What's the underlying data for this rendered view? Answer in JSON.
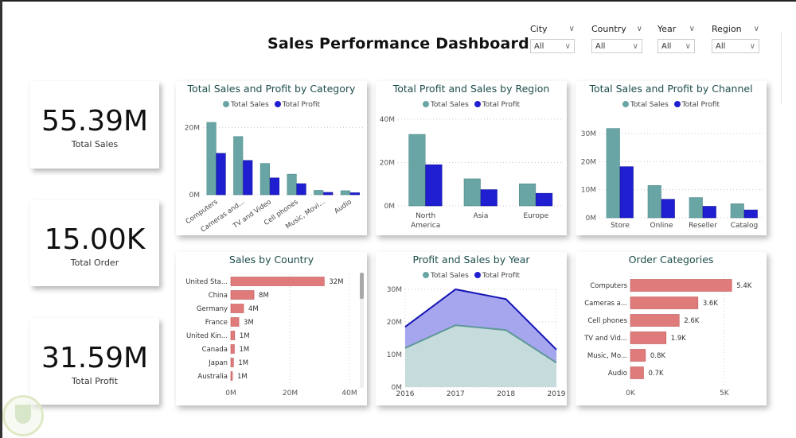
{
  "header": {
    "title": "Sales Performance Dashboard"
  },
  "slicers": [
    {
      "label": "City",
      "value": "All"
    },
    {
      "label": "Country",
      "value": "All"
    },
    {
      "label": "Year",
      "value": "All"
    },
    {
      "label": "Region",
      "value": "All"
    }
  ],
  "kpis": [
    {
      "value": "55.39M",
      "label": "Total Sales"
    },
    {
      "value": "15.00K",
      "label": "Total Order"
    },
    {
      "value": "31.59M",
      "label": "Total Profit"
    }
  ],
  "colors": {
    "sales": "#6aa5a5",
    "profit": "#1f1fd1",
    "bar": "#e07b7b",
    "title": "#1d4e4b"
  },
  "legend": {
    "sales": "Total Sales",
    "profit": "Total Profit"
  },
  "chart_data": [
    {
      "id": "category",
      "type": "bar",
      "title": "Total Sales and Profit by Category",
      "categories": [
        "Computers",
        "Cameras and...",
        "TV and Video",
        "Cell phones",
        "Music, Movi...",
        "Audio"
      ],
      "series": [
        {
          "name": "Total Sales",
          "values": [
            21.5,
            17.3,
            9.3,
            6.1,
            1.3,
            1.2
          ]
        },
        {
          "name": "Total Profit",
          "values": [
            12.3,
            10.2,
            5.0,
            3.3,
            0.7,
            0.6
          ]
        }
      ],
      "yticks": [
        "0M",
        "20M"
      ],
      "ylim": [
        0,
        30
      ],
      "unit": "M",
      "grid": true,
      "legend_position": "top"
    },
    {
      "id": "region",
      "type": "bar",
      "title": "Total Profit and Sales by Region",
      "categories": [
        "North America",
        "Asia",
        "Europe"
      ],
      "series": [
        {
          "name": "Total Sales",
          "values": [
            33,
            12.5,
            10.2
          ]
        },
        {
          "name": "Total Profit",
          "values": [
            19,
            7.5,
            5.8
          ]
        }
      ],
      "yticks": [
        "0M",
        "20M",
        "40M"
      ],
      "ylim": [
        0,
        40
      ],
      "unit": "M",
      "grid": true,
      "legend_position": "top"
    },
    {
      "id": "channel",
      "type": "bar",
      "title": "Total Sales and Profit by Channel",
      "categories": [
        "Store",
        "Online",
        "Reseller",
        "Catalog"
      ],
      "series": [
        {
          "name": "Total Sales",
          "values": [
            31.8,
            11.5,
            7.2,
            5.0
          ]
        },
        {
          "name": "Total Profit",
          "values": [
            18.2,
            6.6,
            4.1,
            2.8
          ]
        }
      ],
      "yticks": [
        "0M",
        "10M",
        "20M",
        "30M"
      ],
      "ylim": [
        0,
        30
      ],
      "unit": "M",
      "grid": true,
      "legend_position": "top"
    },
    {
      "id": "country",
      "type": "bar",
      "orientation": "horizontal",
      "title": "Sales by Country",
      "categories": [
        "United Sta...",
        "China",
        "Germany",
        "France",
        "United Kin...",
        "Canada",
        "Japan",
        "Australia"
      ],
      "values": [
        32,
        8,
        4,
        3,
        1,
        1,
        1,
        1
      ],
      "raw_values": [
        31.5,
        7.8,
        4.3,
        2.7,
        1.3,
        1.2,
        0.9,
        0.5
      ],
      "data_labels": [
        "32M",
        "8M",
        "4M",
        "3M",
        "1M",
        "1M",
        "1M",
        "1M"
      ],
      "xticks": [
        "0M",
        "20M",
        "40M"
      ],
      "xlim": [
        0,
        40
      ],
      "grid": true
    },
    {
      "id": "year",
      "type": "area",
      "title": "Profit and Sales by Year",
      "x": [
        "2016",
        "2017",
        "2018",
        "2019"
      ],
      "series": [
        {
          "name": "Total Sales",
          "values": [
            12,
            19,
            17.5,
            7.5
          ]
        },
        {
          "name": "Total Profit",
          "values": [
            18.5,
            30,
            27,
            11.5
          ]
        }
      ],
      "yticks": [
        "0M",
        "10M",
        "20M",
        "30M"
      ],
      "ylim": [
        0,
        30
      ],
      "grid": true,
      "legend_position": "top"
    },
    {
      "id": "orders",
      "type": "bar",
      "orientation": "horizontal",
      "title": "Order Categories",
      "categories": [
        "Computers",
        "Cameras a...",
        "Cell phones",
        "TV and Vid...",
        "Music, Mo...",
        "Audio"
      ],
      "values": [
        5.4,
        3.6,
        2.6,
        1.9,
        0.8,
        0.7
      ],
      "data_labels": [
        "5.4K",
        "3.6K",
        "2.6K",
        "1.9K",
        "0.8K",
        "0.7K"
      ],
      "xticks": [
        "0K",
        "5K"
      ],
      "xlim": [
        0,
        5.9
      ],
      "grid": true
    }
  ]
}
